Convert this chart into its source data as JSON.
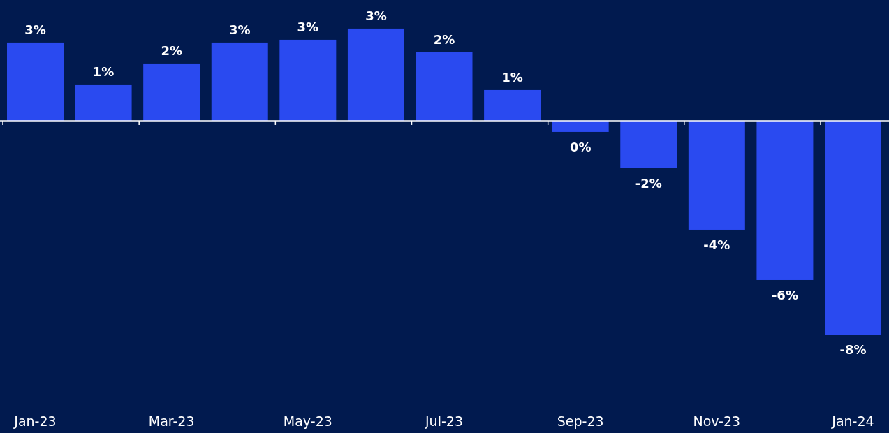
{
  "chart_data": {
    "type": "bar",
    "categories": [
      "Jan-23",
      null,
      "Mar-23",
      null,
      "May-23",
      null,
      "Jul-23",
      null,
      "Sep-23",
      null,
      "Nov-23",
      null,
      "Jan-24"
    ],
    "values": [
      2.8,
      1.3,
      2.05,
      2.8,
      2.9,
      3.3,
      2.45,
      1.1,
      -0.4,
      -1.7,
      -3.9,
      -5.7,
      -7.65
    ],
    "value_labels": [
      "3%",
      "1%",
      "2%",
      "3%",
      "3%",
      "3%",
      "2%",
      "1%",
      "0%",
      "-2%",
      "-4%",
      "-6%",
      "-8%"
    ],
    "color": "#2a4af0"
  }
}
